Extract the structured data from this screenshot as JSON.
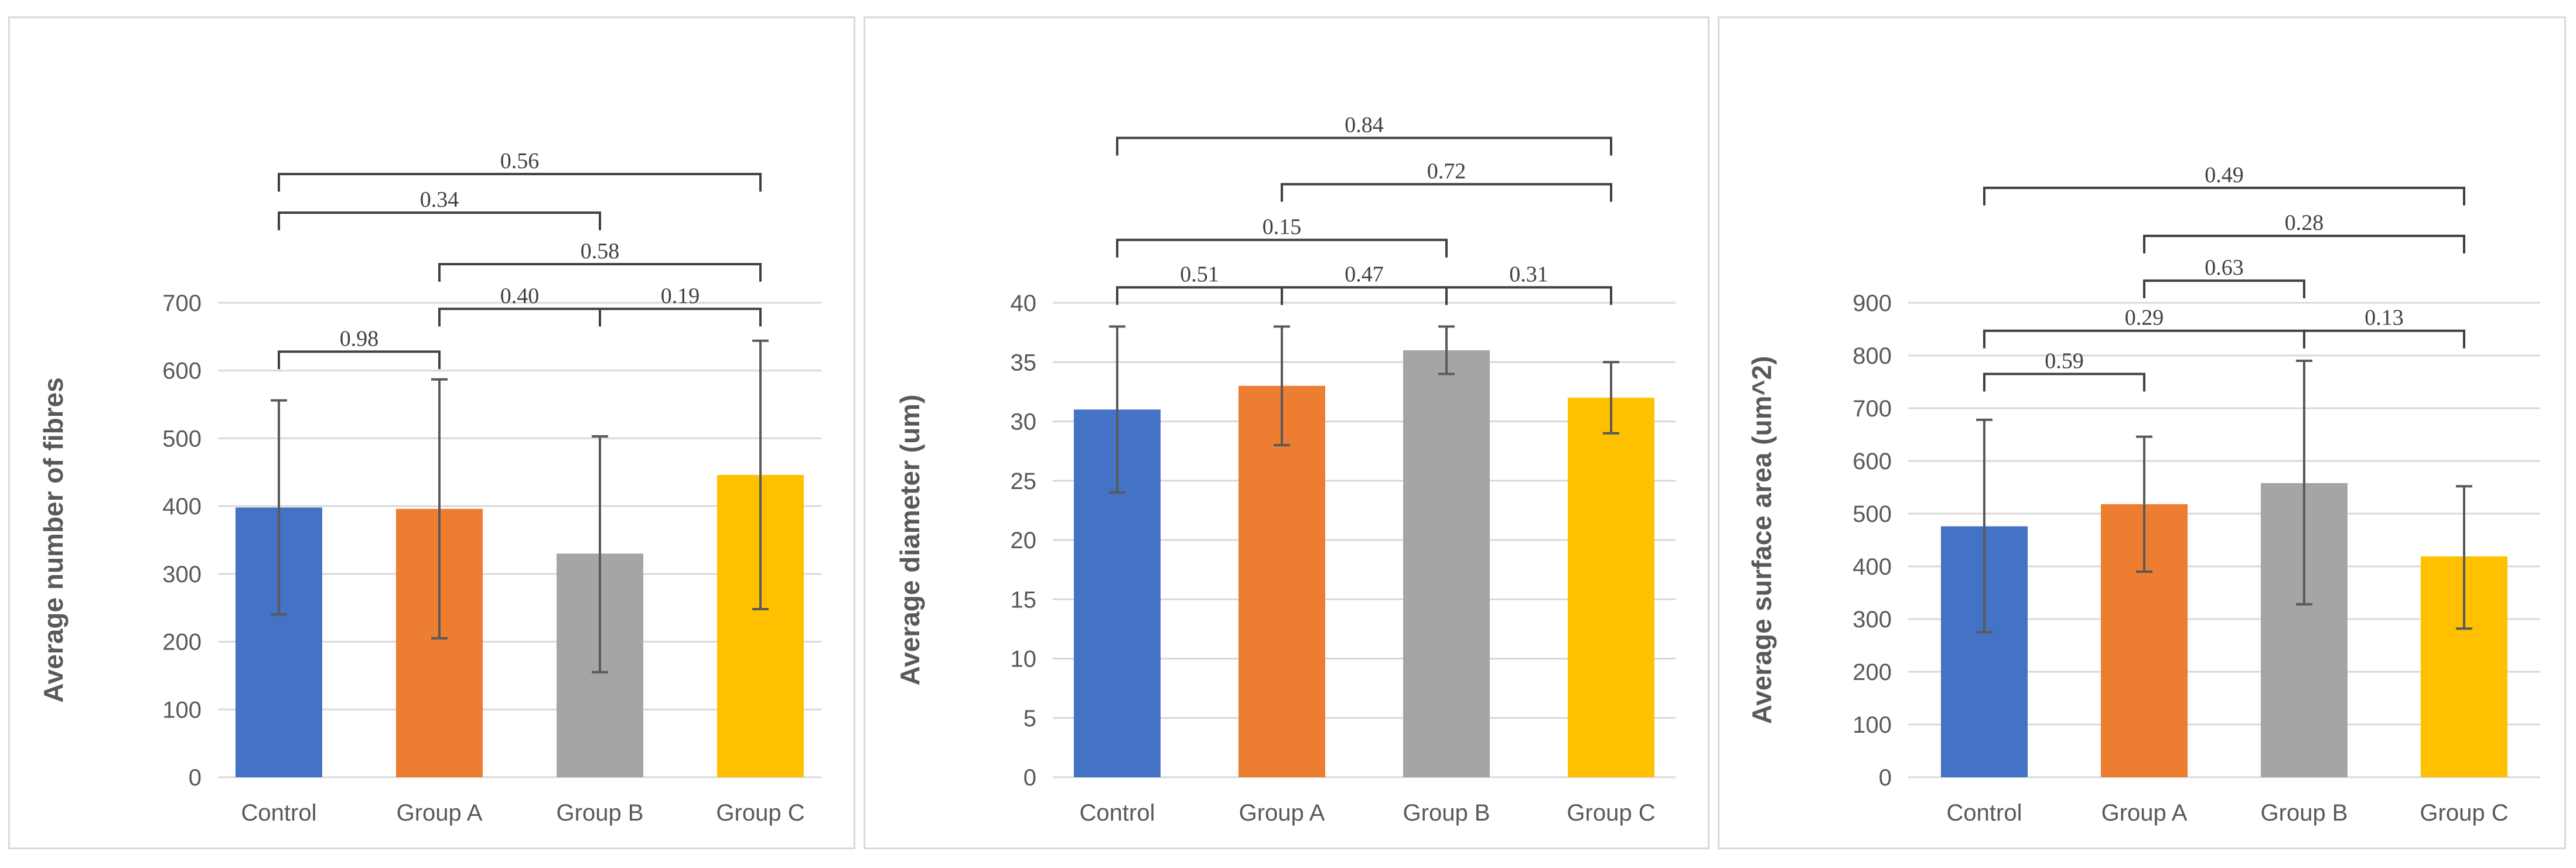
{
  "chart_data": [
    {
      "type": "bar",
      "ylabel": "Average number of fibres",
      "categories": [
        "Control",
        "Group A",
        "Group B",
        "Group C"
      ],
      "values": [
        398,
        396,
        330,
        446
      ],
      "error_low": [
        240,
        205,
        155,
        248
      ],
      "error_high": [
        556,
        587,
        503,
        644
      ],
      "ylim": [
        0,
        700
      ],
      "yticks": [
        0,
        100,
        200,
        300,
        400,
        500,
        600,
        700
      ],
      "colors": [
        "#4472c4",
        "#ed7d31",
        "#a5a5a5",
        "#ffc000"
      ],
      "comparisons": [
        {
          "from": 0,
          "to": 3,
          "label": "0.56",
          "level": 890
        },
        {
          "from": 0,
          "to": 2,
          "label": "0.34",
          "level": 833
        },
        {
          "from": 1,
          "to": 3,
          "label": "0.58",
          "level": 757
        },
        {
          "from": 1,
          "to": 2,
          "label": "0.40",
          "level": 691
        },
        {
          "from": 2,
          "to": 3,
          "label": "0.19",
          "level": 691
        },
        {
          "from": 0,
          "to": 1,
          "label": "0.98",
          "level": 628
        }
      ]
    },
    {
      "type": "bar",
      "ylabel": "Average diameter (um)",
      "categories": [
        "Control",
        "Group A",
        "Group B",
        "Group C"
      ],
      "values": [
        31,
        33,
        36,
        32
      ],
      "error_low": [
        24,
        28,
        34,
        29
      ],
      "error_high": [
        38,
        38,
        38,
        35
      ],
      "ylim": [
        0,
        40
      ],
      "yticks": [
        0,
        5,
        10,
        15,
        20,
        25,
        30,
        35,
        40
      ],
      "colors": [
        "#4472c4",
        "#ed7d31",
        "#a5a5a5",
        "#ffc000"
      ],
      "comparisons": [
        {
          "from": 0,
          "to": 3,
          "label": "0.84",
          "level": 53.9
        },
        {
          "from": 1,
          "to": 3,
          "label": "0.72",
          "level": 50.0
        },
        {
          "from": 0,
          "to": 2,
          "label": "0.15",
          "level": 45.3
        },
        {
          "from": 0,
          "to": 1,
          "label": "0.51",
          "level": 41.3
        },
        {
          "from": 1,
          "to": 2,
          "label": "0.47",
          "level": 41.3
        },
        {
          "from": 2,
          "to": 3,
          "label": "0.31",
          "level": 41.3
        }
      ]
    },
    {
      "type": "bar",
      "ylabel": "Average surface area (um^2)",
      "categories": [
        "Control",
        "Group A",
        "Group B",
        "Group C"
      ],
      "values": [
        476,
        518,
        558,
        419
      ],
      "error_low": [
        275,
        390,
        328,
        282
      ],
      "error_high": [
        678,
        646,
        790,
        552
      ],
      "ylim": [
        0,
        900
      ],
      "yticks": [
        0,
        100,
        200,
        300,
        400,
        500,
        600,
        700,
        800,
        900
      ],
      "colors": [
        "#4472c4",
        "#ed7d31",
        "#a5a5a5",
        "#ffc000"
      ],
      "comparisons": [
        {
          "from": 0,
          "to": 3,
          "label": "0.49",
          "level": 1118
        },
        {
          "from": 1,
          "to": 3,
          "label": "0.28",
          "level": 1027
        },
        {
          "from": 1,
          "to": 2,
          "label": "0.63",
          "level": 942
        },
        {
          "from": 0,
          "to": 2,
          "label": "0.29",
          "level": 847
        },
        {
          "from": 2,
          "to": 3,
          "label": "0.13",
          "level": 847
        },
        {
          "from": 0,
          "to": 1,
          "label": "0.59",
          "level": 765
        }
      ]
    }
  ]
}
